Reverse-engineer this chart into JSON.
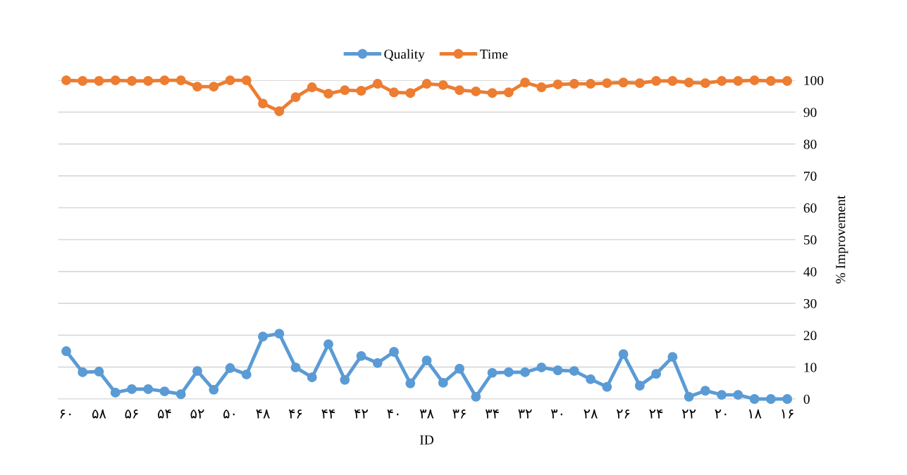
{
  "chart_data": {
    "type": "line",
    "xlabel": "ID",
    "ylabel": "% Improvement",
    "categories": [
      "۶۰",
      null,
      "۵۸",
      null,
      "۵۶",
      null,
      "۵۴",
      null,
      "۵۲",
      null,
      "۵۰",
      null,
      "۴۸",
      null,
      "۴۶",
      null,
      "۴۴",
      null,
      "۴۲",
      null,
      "۴۰",
      null,
      "۳۸",
      null,
      "۳۶",
      null,
      "۳۴",
      null,
      "۳۲",
      null,
      "۳۰",
      null,
      "۲۸",
      null,
      "۲۶",
      null,
      "۲۴",
      null,
      "۲۲",
      null,
      "۲۰",
      null,
      "۱۸",
      null,
      "۱۶"
    ],
    "series": [
      {
        "name": "Quality",
        "color": "#5b9bd5",
        "values": [
          15.0,
          8.4,
          8.6,
          2.0,
          3.1,
          3.1,
          2.4,
          1.5,
          8.8,
          2.9,
          9.7,
          7.7,
          19.6,
          20.5,
          9.9,
          6.8,
          17.2,
          6.0,
          13.5,
          11.3,
          14.8,
          4.9,
          12.1,
          5.1,
          9.5,
          0.7,
          8.2,
          8.4,
          8.4,
          9.9,
          9.0,
          8.8,
          6.2,
          3.8,
          14.1,
          4.2,
          7.9,
          13.2,
          0.7,
          2.6,
          1.3,
          1.3,
          0,
          0,
          0
        ]
      },
      {
        "name": "Time",
        "color": "#ed7d31",
        "values": [
          100,
          99.8,
          99.8,
          100,
          99.8,
          99.8,
          100,
          100,
          98,
          98,
          100,
          100,
          92.7,
          90.3,
          94.7,
          97.8,
          95.8,
          96.9,
          96.7,
          98.9,
          96.2,
          96,
          98.9,
          98.5,
          96.9,
          96.5,
          96,
          96.2,
          99.3,
          97.8,
          98.7,
          98.9,
          98.9,
          99.1,
          99.3,
          99.1,
          99.8,
          99.8,
          99.3,
          99.1,
          99.8,
          99.8,
          100,
          99.8,
          99.8
        ]
      }
    ],
    "ylim": [
      0,
      100
    ],
    "yticks": [
      0,
      10,
      20,
      30,
      40,
      50,
      60,
      70,
      80,
      90,
      100
    ],
    "grid": "y",
    "legend": "top",
    "marker": "circle",
    "line_style": "solid"
  }
}
